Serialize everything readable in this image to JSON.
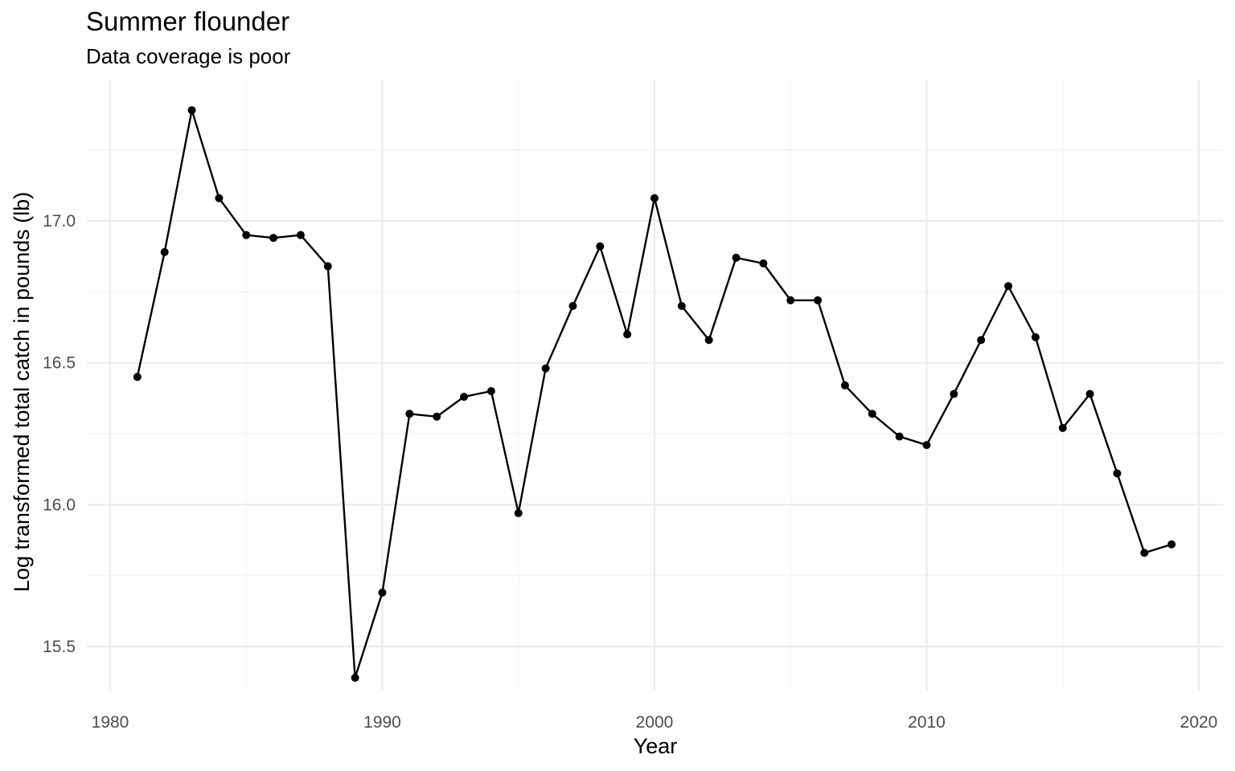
{
  "chart_data": {
    "type": "line",
    "title": "Summer flounder",
    "subtitle": "Data coverage is poor",
    "xlabel": "Year",
    "ylabel": "Log transformed  total catch in pounds (lb)",
    "xlim": [
      1980,
      2020
    ],
    "ylim": [
      15.38,
      17.42
    ],
    "x_ticks": [
      1980,
      1990,
      2000,
      2010,
      2020
    ],
    "x_tick_labels": [
      "1980",
      "1990",
      "2000",
      "2010",
      "2020"
    ],
    "y_ticks": [
      15.5,
      16.0,
      16.5,
      17.0
    ],
    "y_tick_labels": [
      "15.5",
      "16.0",
      "16.5",
      "17.0"
    ],
    "grid": true,
    "legend": "none",
    "colors": {
      "line": "#000000",
      "point": "#000000",
      "grid_major": "#ebebeb",
      "grid_minor": "#f4f4f4",
      "tick_text": "#4d4d4d"
    },
    "x": [
      1981,
      1982,
      1983,
      1984,
      1985,
      1986,
      1987,
      1988,
      1989,
      1990,
      1991,
      1992,
      1993,
      1994,
      1995,
      1996,
      1997,
      1998,
      1999,
      2000,
      2001,
      2002,
      2003,
      2004,
      2005,
      2006,
      2007,
      2008,
      2009,
      2010,
      2011,
      2012,
      2013,
      2014,
      2015,
      2016,
      2017,
      2018,
      2019
    ],
    "y": [
      16.45,
      16.89,
      17.39,
      17.08,
      16.95,
      16.94,
      16.95,
      16.84,
      15.39,
      15.69,
      16.32,
      16.31,
      16.38,
      16.4,
      15.97,
      16.48,
      16.7,
      16.91,
      16.6,
      17.08,
      16.7,
      16.58,
      16.87,
      16.85,
      16.72,
      16.72,
      16.42,
      16.32,
      16.24,
      16.21,
      16.39,
      16.58,
      16.77,
      16.59,
      16.27,
      16.39,
      16.11,
      15.83,
      15.86
    ]
  }
}
